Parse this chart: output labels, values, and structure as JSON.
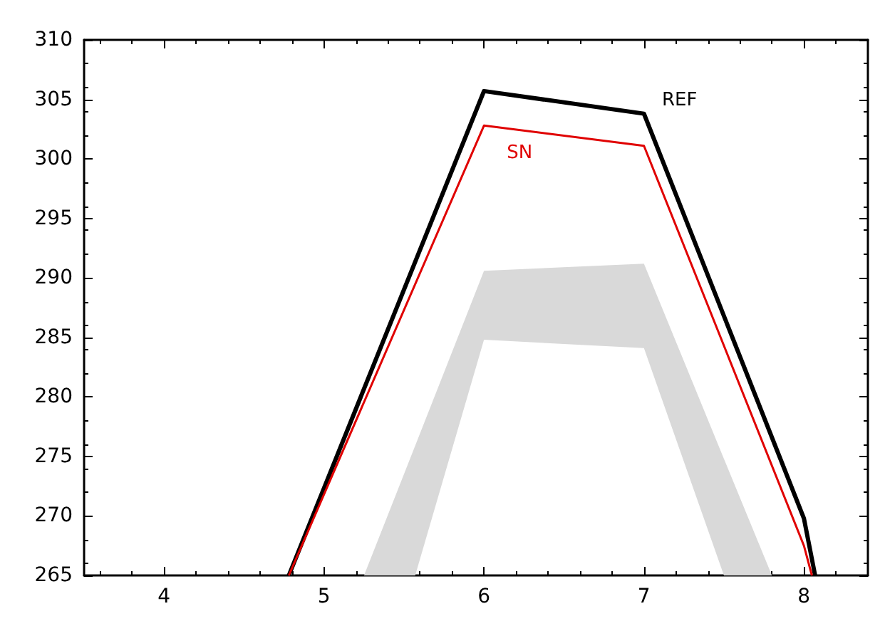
{
  "chart_data": {
    "type": "line",
    "xlim": [
      3.5,
      8.4
    ],
    "xticks": [
      4,
      5,
      6,
      7,
      8
    ],
    "ylim": [
      265,
      310
    ],
    "yticks": [
      265,
      270,
      275,
      280,
      285,
      290,
      295,
      300,
      305,
      310
    ],
    "grid": false,
    "legend": false,
    "series": [
      {
        "type": "area",
        "color": "#d9d9d9",
        "x": [
          5.25,
          5.57,
          6,
          7,
          7.5,
          7.8
        ],
        "values": [
          null,
          null,
          null,
          null,
          null,
          null
        ],
        "lower": [
          265,
          265,
          284.8,
          284.1,
          265,
          265
        ],
        "upper": [
          265,
          275.9,
          290.6,
          291.2,
          274.8,
          265
        ]
      },
      {
        "name": "REF",
        "color": "#000000",
        "x": [
          4.78,
          6,
          7,
          8,
          8.07
        ],
        "values": [
          265,
          305.7,
          303.8,
          269.8,
          265
        ]
      },
      {
        "name": "SN",
        "color": "#e00000",
        "x": [
          4.78,
          6,
          7,
          8,
          8.05
        ],
        "values": [
          265,
          302.8,
          301.1,
          267.5,
          265
        ]
      }
    ]
  }
}
